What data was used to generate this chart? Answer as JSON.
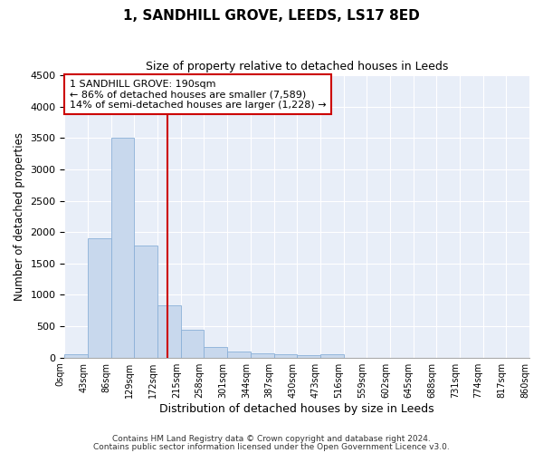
{
  "title1": "1, SANDHILL GROVE, LEEDS, LS17 8ED",
  "title2": "Size of property relative to detached houses in Leeds",
  "xlabel": "Distribution of detached houses by size in Leeds",
  "ylabel": "Number of detached properties",
  "bar_color": "#c8d8ed",
  "bar_edge_color": "#8ab0d8",
  "background_color": "#e8eef8",
  "grid_color": "#ffffff",
  "bin_labels": [
    "0sqm",
    "43sqm",
    "86sqm",
    "129sqm",
    "172sqm",
    "215sqm",
    "258sqm",
    "301sqm",
    "344sqm",
    "387sqm",
    "430sqm",
    "473sqm",
    "516sqm",
    "559sqm",
    "602sqm",
    "645sqm",
    "688sqm",
    "731sqm",
    "774sqm",
    "817sqm",
    "860sqm"
  ],
  "bar_heights": [
    50,
    1900,
    3500,
    1780,
    840,
    450,
    170,
    100,
    65,
    55,
    45,
    50,
    0,
    0,
    0,
    0,
    0,
    0,
    0,
    0
  ],
  "ylim": [
    0,
    4500
  ],
  "yticks": [
    0,
    500,
    1000,
    1500,
    2000,
    2500,
    3000,
    3500,
    4000,
    4500
  ],
  "vline_x": 190,
  "bin_width": 43,
  "vline_color": "#cc0000",
  "annotation_line1": "1 SANDHILL GROVE: 190sqm",
  "annotation_line2": "← 86% of detached houses are smaller (7,589)",
  "annotation_line3": "14% of semi-detached houses are larger (1,228) →",
  "annotation_box_color": "#cc0000",
  "footer1": "Contains HM Land Registry data © Crown copyright and database right 2024.",
  "footer2": "Contains public sector information licensed under the Open Government Licence v3.0."
}
